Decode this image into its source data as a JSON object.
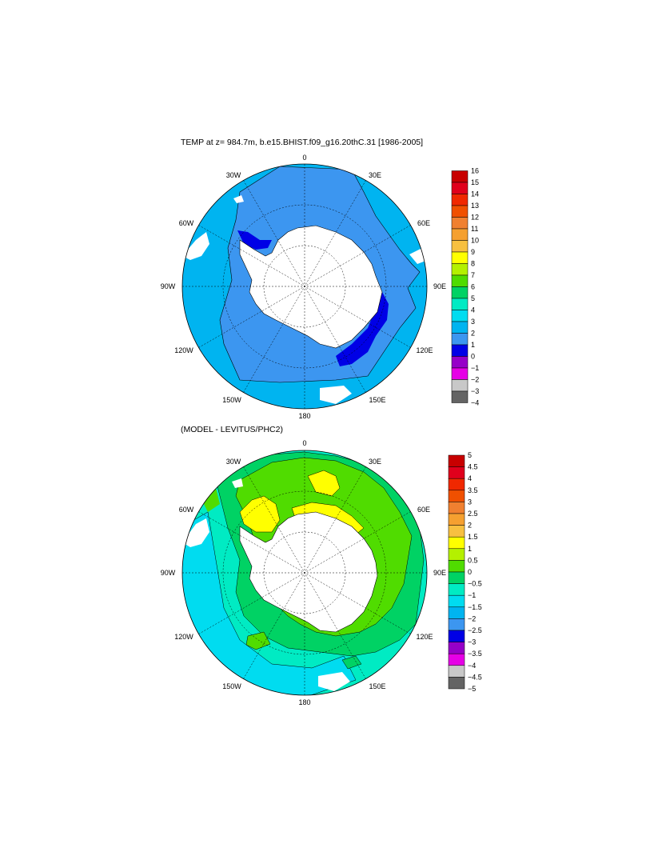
{
  "panels": [
    {
      "title": "TEMP at z= 984.7m, b.e15.BHIST.f09_g16.20thC.31 [1986-2005]",
      "lon_labels": [
        "0",
        "30E",
        "60E",
        "90E",
        "120E",
        "150E",
        "180",
        "150W",
        "120W",
        "90W",
        "60W",
        "30W"
      ],
      "colorbar": {
        "labels": [
          "16",
          "15",
          "14",
          "13",
          "12",
          "11",
          "10",
          "9",
          "8",
          "7",
          "6",
          "5",
          "4",
          "3",
          "2",
          "1",
          "0",
          "−1",
          "−2",
          "−3",
          "−4"
        ],
        "colors": [
          "#c80000",
          "#e0001c",
          "#f02800",
          "#f05000",
          "#f08030",
          "#f5a030",
          "#f7c040",
          "#ffff00",
          "#b4f000",
          "#50dc00",
          "#00d264",
          "#00ebc3",
          "#00dcf0",
          "#00b4f0",
          "#3c96f0",
          "#0000e6",
          "#9600c8",
          "#e600e6",
          "#c8c8c8",
          "#646464"
        ]
      }
    },
    {
      "title": "(MODEL - LEVITUS/PHC2)",
      "lon_labels": [
        "0",
        "30E",
        "60E",
        "90E",
        "120E",
        "150E",
        "180",
        "150W",
        "120W",
        "90W",
        "60W",
        "30W"
      ],
      "colorbar": {
        "labels": [
          "5",
          "4.5",
          "4",
          "3.5",
          "3",
          "2.5",
          "2",
          "1.5",
          "1",
          "0.5",
          "0",
          "−0.5",
          "−1",
          "−1.5",
          "−2",
          "−2.5",
          "−3",
          "−3.5",
          "−4",
          "−4.5",
          "−5"
        ],
        "colors": [
          "#c80000",
          "#e0001c",
          "#f02800",
          "#f05000",
          "#f08030",
          "#f5a030",
          "#f7c040",
          "#ffff00",
          "#b4f000",
          "#50dc00",
          "#00d264",
          "#00ebc3",
          "#00dcf0",
          "#00b4f0",
          "#3c96f0",
          "#0000e6",
          "#9600c8",
          "#e600e6",
          "#c8c8c8",
          "#646464"
        ]
      }
    }
  ]
}
